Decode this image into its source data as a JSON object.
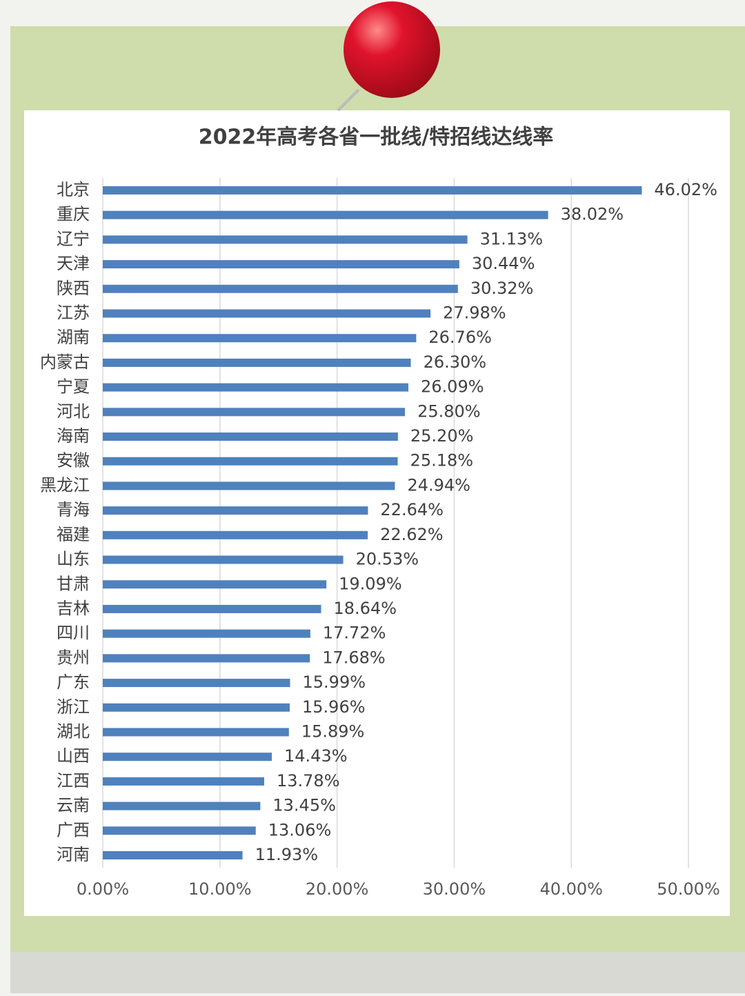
{
  "chart_data": {
    "type": "hbar",
    "title": "2022年高考各省一批线/特招线达线率",
    "categories": [
      "北京",
      "重庆",
      "辽宁",
      "天津",
      "陕西",
      "江苏",
      "湖南",
      "内蒙古",
      "宁夏",
      "河北",
      "海南",
      "安徽",
      "黑龙江",
      "青海",
      "福建",
      "山东",
      "甘肃",
      "吉林",
      "四川",
      "贵州",
      "广东",
      "浙江",
      "湖北",
      "山西",
      "江西",
      "云南",
      "广西",
      "河南"
    ],
    "values": [
      46.02,
      38.02,
      31.13,
      30.44,
      30.32,
      27.98,
      26.76,
      26.3,
      26.09,
      25.8,
      25.2,
      25.18,
      24.94,
      22.64,
      22.62,
      20.53,
      19.09,
      18.64,
      17.72,
      17.68,
      15.99,
      15.96,
      15.89,
      14.43,
      13.78,
      13.45,
      13.06,
      11.93
    ],
    "value_labels": [
      "46.02%",
      "38.02%",
      "31.13%",
      "30.44%",
      "30.32%",
      "27.98%",
      "26.76%",
      "26.30%",
      "26.09%",
      "25.80%",
      "25.20%",
      "25.18%",
      "24.94%",
      "22.64%",
      "22.62%",
      "20.53%",
      "19.09%",
      "18.64%",
      "17.72%",
      "17.68%",
      "15.99%",
      "15.96%",
      "15.89%",
      "14.43%",
      "13.78%",
      "13.45%",
      "13.06%",
      "11.93%"
    ],
    "color": "#4f81bd",
    "xlim": [
      0,
      50
    ],
    "xticks": [
      {
        "value": 0,
        "label": "0.00%"
      },
      {
        "value": 10,
        "label": "10.00%"
      },
      {
        "value": 20,
        "label": "20.00%"
      },
      {
        "value": 30,
        "label": "30.00%"
      },
      {
        "value": 40,
        "label": "40.00%"
      },
      {
        "value": 50,
        "label": "50.00%"
      }
    ],
    "grid": true
  }
}
